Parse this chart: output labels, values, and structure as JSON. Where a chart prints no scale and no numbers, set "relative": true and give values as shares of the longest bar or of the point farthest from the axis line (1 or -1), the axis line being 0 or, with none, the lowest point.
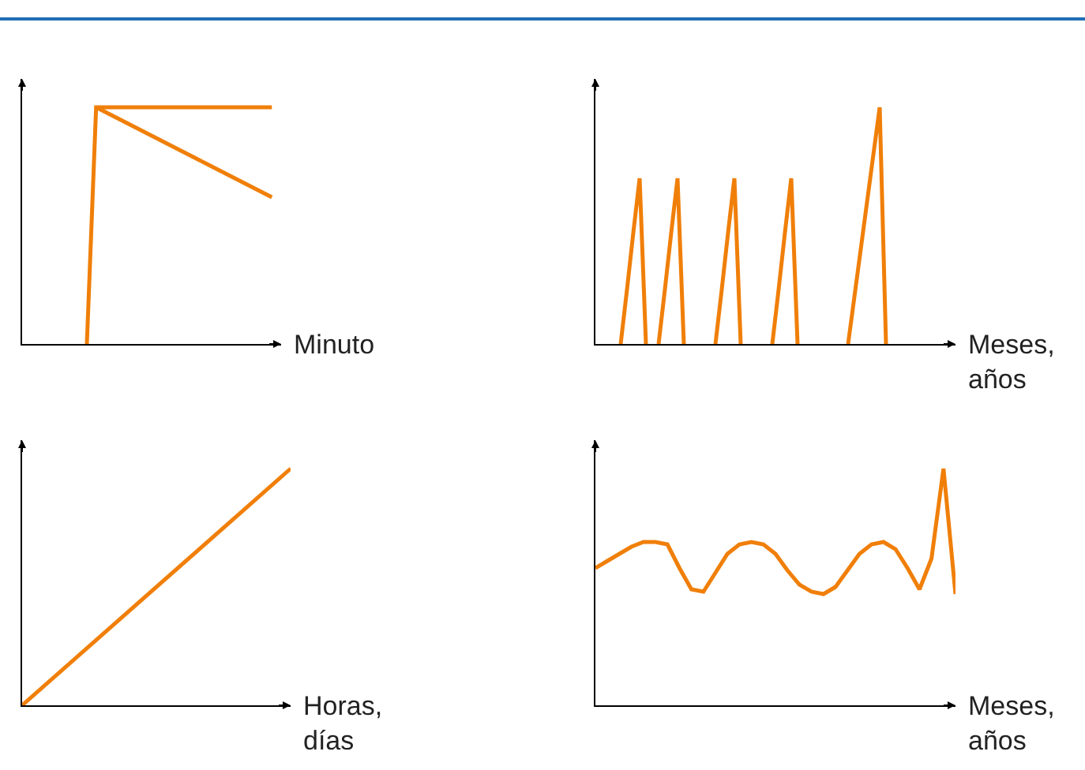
{
  "chart_data": [
    {
      "type": "line",
      "relative": true,
      "xlabel": "Minuto",
      "categories": [
        null,
        null,
        null,
        null,
        null,
        null,
        null,
        null,
        null,
        null,
        null,
        null,
        null,
        null,
        null,
        null,
        null,
        null,
        null,
        null,
        null,
        null,
        null,
        null,
        null,
        null,
        null,
        null,
        null
      ],
      "series": [
        {
          "color": "#f07f09",
          "values": [
            null,
            null,
            null,
            null,
            null,
            null,
            null,
            0,
            1,
            1,
            1,
            1,
            1,
            1,
            1,
            1,
            1,
            1,
            1,
            1,
            1,
            1,
            1,
            1,
            1,
            1,
            1,
            1,
            null
          ]
        },
        {
          "color": "#f07f09",
          "values": [
            null,
            null,
            null,
            null,
            null,
            null,
            null,
            null,
            1,
            0.98,
            0.96,
            0.94,
            0.92,
            0.9,
            0.88,
            0.86,
            0.84,
            0.82,
            0.8,
            0.78,
            0.76,
            0.74,
            0.72,
            0.7,
            0.68,
            0.66,
            0.64,
            0.62,
            null
          ]
        }
      ]
    },
    {
      "type": "line",
      "relative": true,
      "xlabel": "Meses,\naños",
      "categories": [
        null,
        null,
        null,
        null,
        null,
        null,
        null,
        null,
        null,
        null,
        null,
        null,
        null,
        null,
        null,
        null,
        null,
        null,
        null,
        null,
        null,
        null,
        null,
        null,
        null,
        null,
        null,
        null,
        null,
        null,
        null,
        null,
        null,
        null,
        null,
        null,
        null,
        null,
        null,
        null,
        null,
        null,
        null,
        null,
        null,
        null,
        null,
        null,
        null,
        null,
        null,
        null,
        null,
        null,
        null,
        null,
        null,
        null
      ],
      "series": [
        {
          "color": "#f07f09",
          "values": [
            null,
            null,
            null,
            null,
            0,
            0.23,
            0.47,
            0.7,
            0,
            null,
            null,
            null,
            null,
            null,
            null,
            null,
            null,
            null,
            null,
            null,
            null,
            null,
            null,
            null,
            null,
            null,
            null,
            null,
            null,
            null,
            null,
            null,
            null,
            null,
            null,
            null,
            null,
            null,
            null,
            null,
            null,
            null,
            null,
            null,
            null,
            null,
            null,
            null,
            null,
            null,
            null,
            null,
            null,
            null,
            null,
            null,
            null,
            null
          ]
        },
        {
          "color": "#f07f09",
          "values": [
            null,
            null,
            null,
            null,
            null,
            null,
            null,
            null,
            null,
            null,
            0,
            0.23,
            0.47,
            0.7,
            0,
            null,
            null,
            null,
            null,
            null,
            null,
            null,
            null,
            null,
            null,
            null,
            null,
            null,
            null,
            null,
            null,
            null,
            null,
            null,
            null,
            null,
            null,
            null,
            null,
            null,
            null,
            null,
            null,
            null,
            null,
            null,
            null,
            null,
            null,
            null,
            null,
            null,
            null,
            null,
            null,
            null,
            null,
            null
          ]
        },
        {
          "color": "#f07f09",
          "values": [
            null,
            null,
            null,
            null,
            null,
            null,
            null,
            null,
            null,
            null,
            null,
            null,
            null,
            null,
            null,
            null,
            null,
            null,
            null,
            0,
            0.23,
            0.47,
            0.7,
            0,
            null,
            null,
            null,
            null,
            null,
            null,
            null,
            null,
            null,
            null,
            null,
            null,
            null,
            null,
            null,
            null,
            null,
            null,
            null,
            null,
            null,
            null,
            null,
            null,
            null,
            null,
            null,
            null,
            null,
            null,
            null,
            null,
            null,
            null
          ]
        },
        {
          "color": "#f07f09",
          "values": [
            null,
            null,
            null,
            null,
            null,
            null,
            null,
            null,
            null,
            null,
            null,
            null,
            null,
            null,
            null,
            null,
            null,
            null,
            null,
            null,
            null,
            null,
            null,
            null,
            null,
            null,
            null,
            null,
            0,
            0.23,
            0.47,
            0.7,
            0,
            null,
            null,
            null,
            null,
            null,
            null,
            null,
            null,
            null,
            null,
            null,
            null,
            null,
            null,
            null,
            null,
            null,
            null,
            null,
            null,
            null,
            null,
            null,
            null,
            null
          ]
        },
        {
          "color": "#f07f09",
          "values": [
            null,
            null,
            null,
            null,
            null,
            null,
            null,
            null,
            null,
            null,
            null,
            null,
            null,
            null,
            null,
            null,
            null,
            null,
            null,
            null,
            null,
            null,
            null,
            null,
            null,
            null,
            null,
            null,
            null,
            null,
            null,
            null,
            null,
            null,
            null,
            null,
            null,
            null,
            null,
            null,
            0,
            0.2,
            0.4,
            0.6,
            0.8,
            1,
            0,
            null,
            null,
            null,
            null,
            null,
            null,
            null,
            null,
            null,
            null,
            null
          ]
        }
      ]
    },
    {
      "type": "line",
      "relative": true,
      "xlabel": "Horas,\ndías",
      "categories": [
        null,
        null
      ],
      "series": [
        {
          "color": "#f07f09",
          "values": [
            0,
            1
          ]
        }
      ]
    },
    {
      "type": "line",
      "relative": true,
      "xlabel": "Meses,\naños",
      "categories": [
        null,
        null,
        null,
        null,
        null,
        null,
        null,
        null,
        null,
        null,
        null,
        null,
        null,
        null,
        null,
        null,
        null,
        null,
        null,
        null,
        null,
        null,
        null,
        null,
        null,
        null,
        null,
        null,
        null,
        null,
        null
      ],
      "series": [
        {
          "color": "#f07f09",
          "values": [
            0.58,
            0.61,
            0.64,
            0.67,
            0.69,
            0.69,
            0.68,
            0.58,
            0.49,
            0.48,
            0.56,
            0.64,
            0.68,
            0.69,
            0.68,
            0.64,
            0.57,
            0.51,
            0.48,
            0.47,
            0.5,
            0.57,
            0.64,
            0.68,
            0.69,
            0.66,
            0.58,
            0.49,
            0.62,
            1,
            0.47
          ]
        }
      ]
    }
  ]
}
